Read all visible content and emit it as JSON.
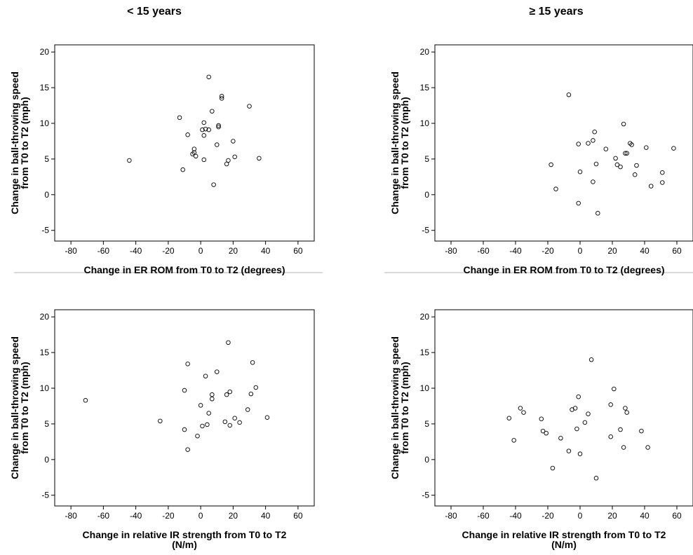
{
  "page": {
    "left_title": "< 15 years",
    "right_title": "≥ 15 years"
  },
  "chart_data": [
    {
      "type": "scatter",
      "title": "",
      "xlabel": "Change in ER ROM from T0 to T2 (degrees)",
      "ylabel": [
        "Change in ball-throwing speed",
        "from T0 to T2 (mph)"
      ],
      "xlim": [
        -90,
        70
      ],
      "ylim": [
        -6.5,
        21
      ],
      "xticks": [
        -80,
        -60,
        -40,
        -20,
        0,
        20,
        40,
        60
      ],
      "yticks": [
        -5,
        0,
        5,
        10,
        15,
        20
      ],
      "grid": false,
      "points": [
        [
          -44,
          4.8
        ],
        [
          -13,
          10.8
        ],
        [
          -11,
          3.5
        ],
        [
          -8,
          8.4
        ],
        [
          -5,
          5.7
        ],
        [
          -4,
          6.4
        ],
        [
          -3,
          5.4
        ],
        [
          -4,
          5.9
        ],
        [
          1,
          9.1
        ],
        [
          2,
          10.1
        ],
        [
          2,
          4.9
        ],
        [
          2,
          8.3
        ],
        [
          3,
          9.2
        ],
        [
          5,
          9.1
        ],
        [
          5,
          16.5
        ],
        [
          7,
          11.7
        ],
        [
          8,
          1.4
        ],
        [
          10,
          7.0
        ],
        [
          11,
          9.5
        ],
        [
          11,
          9.7
        ],
        [
          13,
          13.5
        ],
        [
          13,
          13.8
        ],
        [
          16,
          4.3
        ],
        [
          17,
          4.8
        ],
        [
          20,
          7.5
        ],
        [
          21,
          5.3
        ],
        [
          30,
          12.4
        ],
        [
          36,
          5.1
        ]
      ]
    },
    {
      "type": "scatter",
      "title": "",
      "xlabel": "Change in ER ROM from T0 to T2 (degrees)",
      "ylabel": [
        "Change in ball-throwing speed",
        "from T0 to T2 (mph)"
      ],
      "xlim": [
        -90,
        70
      ],
      "ylim": [
        -6.5,
        21
      ],
      "xticks": [
        -80,
        -60,
        -40,
        -20,
        0,
        20,
        40,
        60
      ],
      "yticks": [
        -5,
        0,
        5,
        10,
        15,
        20
      ],
      "grid": false,
      "points": [
        [
          -18,
          4.2
        ],
        [
          -15,
          0.8
        ],
        [
          -7,
          14.0
        ],
        [
          -1,
          7.1
        ],
        [
          -1,
          -1.2
        ],
        [
          0,
          3.2
        ],
        [
          5,
          7.2
        ],
        [
          8,
          7.6
        ],
        [
          8,
          1.8
        ],
        [
          9,
          8.8
        ],
        [
          10,
          4.3
        ],
        [
          11,
          -2.6
        ],
        [
          16,
          6.4
        ],
        [
          22,
          5.1
        ],
        [
          23,
          4.2
        ],
        [
          25,
          3.9
        ],
        [
          27,
          9.9
        ],
        [
          28,
          5.8
        ],
        [
          29,
          5.8
        ],
        [
          31,
          7.2
        ],
        [
          32,
          7.0
        ],
        [
          34,
          2.8
        ],
        [
          35,
          4.1
        ],
        [
          41,
          6.6
        ],
        [
          44,
          1.2
        ],
        [
          51,
          1.7
        ],
        [
          51,
          3.1
        ],
        [
          58,
          6.5
        ]
      ]
    },
    {
      "type": "scatter",
      "title": "",
      "xlabel": [
        "Change in relative IR strength from T0 to T2",
        "(N/m)"
      ],
      "ylabel": [
        "Change in ball-throwing speed",
        "from T0 to T2 (mph)"
      ],
      "xlim": [
        -90,
        70
      ],
      "ylim": [
        -6.5,
        21
      ],
      "xticks": [
        -80,
        -60,
        -40,
        -20,
        0,
        20,
        40,
        60
      ],
      "yticks": [
        -5,
        0,
        5,
        10,
        15,
        20
      ],
      "grid": false,
      "points": [
        [
          -71,
          8.3
        ],
        [
          -25,
          5.4
        ],
        [
          -10,
          4.2
        ],
        [
          -10,
          9.7
        ],
        [
          -8,
          13.4
        ],
        [
          -8,
          1.4
        ],
        [
          -2,
          3.3
        ],
        [
          0,
          7.6
        ],
        [
          1,
          4.7
        ],
        [
          3,
          11.7
        ],
        [
          4,
          4.9
        ],
        [
          5,
          6.5
        ],
        [
          7,
          9.1
        ],
        [
          7,
          8.5
        ],
        [
          10,
          12.3
        ],
        [
          15,
          5.3
        ],
        [
          16,
          9.1
        ],
        [
          17,
          16.4
        ],
        [
          18,
          9.5
        ],
        [
          18,
          4.8
        ],
        [
          21,
          5.8
        ],
        [
          24,
          5.2
        ],
        [
          29,
          7.0
        ],
        [
          31,
          9.2
        ],
        [
          32,
          13.6
        ],
        [
          34,
          10.1
        ],
        [
          41,
          5.9
        ]
      ]
    },
    {
      "type": "scatter",
      "title": "",
      "xlabel": [
        "Change in relative IR strength from T0 to T2",
        "(N/m)"
      ],
      "ylabel": [
        "Change in ball-throwing speed",
        "from T0 to T2 (mph)"
      ],
      "xlim": [
        -90,
        70
      ],
      "ylim": [
        -6.5,
        21
      ],
      "xticks": [
        -80,
        -60,
        -40,
        -20,
        0,
        20,
        40,
        60
      ],
      "yticks": [
        -5,
        0,
        5,
        10,
        15,
        20
      ],
      "grid": false,
      "points": [
        [
          -44,
          5.8
        ],
        [
          -41,
          2.7
        ],
        [
          -37,
          7.2
        ],
        [
          -35,
          6.6
        ],
        [
          -24,
          5.7
        ],
        [
          -23,
          4.0
        ],
        [
          -21,
          3.7
        ],
        [
          -17,
          -1.2
        ],
        [
          -12,
          3.0
        ],
        [
          -7,
          1.2
        ],
        [
          -5,
          7.0
        ],
        [
          -3,
          7.2
        ],
        [
          -2,
          4.3
        ],
        [
          -1,
          8.8
        ],
        [
          0,
          0.8
        ],
        [
          3,
          5.2
        ],
        [
          7,
          14.0
        ],
        [
          10,
          -2.6
        ],
        [
          5,
          6.4
        ],
        [
          19,
          7.7
        ],
        [
          19,
          3.2
        ],
        [
          21,
          9.9
        ],
        [
          25,
          4.2
        ],
        [
          27,
          1.7
        ],
        [
          28,
          7.2
        ],
        [
          29,
          6.6
        ],
        [
          38,
          4.0
        ],
        [
          42,
          1.7
        ]
      ]
    }
  ]
}
